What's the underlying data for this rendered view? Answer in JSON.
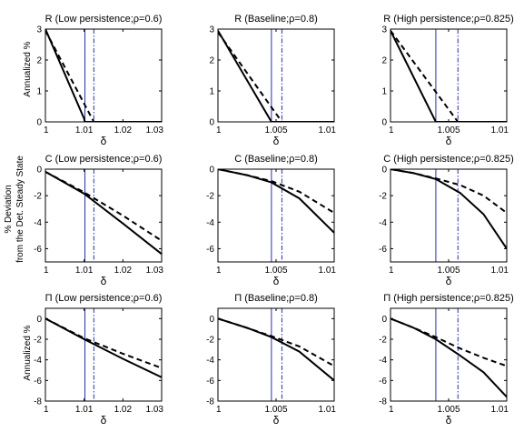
{
  "row_labels": [
    "Annualized %",
    "% Deviation",
    "from the Det. Steady State",
    "Annualized %"
  ],
  "chart_data": [
    {
      "type": "line",
      "title": "R (Low persistence;ρ=0.6)",
      "xlabel": "δ",
      "ylabel": "Annualized %",
      "xlim": [
        1,
        1.03
      ],
      "ylim": [
        0,
        3
      ],
      "xticks": [
        1,
        1.01,
        1.02,
        1.03
      ],
      "xtick_labels": [
        "1",
        "1.01",
        "1.02",
        "1.03"
      ],
      "yticks": [
        0,
        1,
        2,
        3
      ],
      "ytick_labels": [
        "0",
        "1",
        "2",
        "3"
      ],
      "vlines": [
        1.0102,
        1.0125
      ],
      "series": [
        {
          "style": "solid",
          "x": [
            1,
            1.01,
            1.0102,
            1.03
          ],
          "y": [
            3,
            0.1,
            0,
            0
          ]
        },
        {
          "style": "dashed",
          "x": [
            1,
            1.0125,
            1.03
          ],
          "y": [
            2.95,
            0,
            0
          ]
        }
      ]
    },
    {
      "type": "line",
      "title": "R (Baseline;ρ=0.8)",
      "xlabel": "δ",
      "ylabel": "",
      "xlim": [
        1,
        1.01
      ],
      "ylim": [
        0,
        3
      ],
      "xticks": [
        1,
        1.005,
        1.01
      ],
      "xtick_labels": [
        "1",
        "1.005",
        "1.01"
      ],
      "yticks": [
        0,
        1,
        2,
        3
      ],
      "ytick_labels": [
        "0",
        "1",
        "2",
        "3"
      ],
      "vlines": [
        1.0046,
        1.0055
      ],
      "series": [
        {
          "style": "solid",
          "x": [
            1,
            1.0046,
            1.01
          ],
          "y": [
            2.95,
            0,
            0
          ]
        },
        {
          "style": "dashed",
          "x": [
            1,
            1.0055,
            1.01
          ],
          "y": [
            2.9,
            0,
            0
          ]
        }
      ]
    },
    {
      "type": "line",
      "title": "R (High persistence;ρ=0.825)",
      "xlabel": "δ",
      "ylabel": "",
      "xlim": [
        1,
        1.01
      ],
      "ylim": [
        0,
        3
      ],
      "xticks": [
        1,
        1.005,
        1.01
      ],
      "xtick_labels": [
        "1",
        "1.005",
        "1.01"
      ],
      "yticks": [
        0,
        1,
        2,
        3
      ],
      "ytick_labels": [
        "0",
        "1",
        "2",
        "3"
      ],
      "vlines": [
        1.0039,
        1.0058
      ],
      "series": [
        {
          "style": "solid",
          "x": [
            1,
            1.0039,
            1.01
          ],
          "y": [
            2.95,
            0,
            0
          ]
        },
        {
          "style": "dashed",
          "x": [
            1,
            1.0058,
            1.01
          ],
          "y": [
            2.95,
            0,
            0
          ]
        }
      ]
    },
    {
      "type": "line",
      "title": "C (Low persistence;ρ=0.6)",
      "xlabel": "δ",
      "ylabel": "% Deviation from the Det. Steady State",
      "xlim": [
        1,
        1.03
      ],
      "ylim": [
        -7,
        0
      ],
      "xticks": [
        1,
        1.01,
        1.02,
        1.03
      ],
      "xtick_labels": [
        "1",
        "1.01",
        "1.02",
        "1.03"
      ],
      "yticks": [
        -6,
        -4,
        -2,
        0
      ],
      "ytick_labels": [
        "-6",
        "-4",
        "-2",
        "0"
      ],
      "vlines": [
        1.0102,
        1.0125
      ],
      "series": [
        {
          "style": "solid",
          "x": [
            1,
            1.01,
            1.02,
            1.03
          ],
          "y": [
            -0.2,
            -1.85,
            -4.1,
            -6.4
          ]
        },
        {
          "style": "dashed",
          "x": [
            1,
            1.01,
            1.02,
            1.03
          ],
          "y": [
            -0.2,
            -1.75,
            -3.5,
            -5.4
          ]
        }
      ]
    },
    {
      "type": "line",
      "title": "C (Baseline;ρ=0.8)",
      "xlabel": "δ",
      "ylabel": "",
      "xlim": [
        1,
        1.01
      ],
      "ylim": [
        -7,
        0
      ],
      "xticks": [
        1,
        1.005,
        1.01
      ],
      "xtick_labels": [
        "1",
        "1.005",
        "1.01"
      ],
      "yticks": [
        -6,
        -4,
        -2,
        0
      ],
      "ytick_labels": [
        "-6",
        "-4",
        "-2",
        "0"
      ],
      "vlines": [
        1.0046,
        1.0055
      ],
      "series": [
        {
          "style": "solid",
          "x": [
            1,
            1.0025,
            1.0046,
            1.007,
            1.01
          ],
          "y": [
            0,
            -0.45,
            -1.0,
            -2.2,
            -4.8
          ]
        },
        {
          "style": "dashed",
          "x": [
            1,
            1.0025,
            1.0046,
            1.007,
            1.01
          ],
          "y": [
            0,
            -0.45,
            -0.9,
            -1.7,
            -3.3
          ]
        }
      ]
    },
    {
      "type": "line",
      "title": "C (High persistence;ρ=0.825)",
      "xlabel": "δ",
      "ylabel": "",
      "xlim": [
        1,
        1.01
      ],
      "ylim": [
        -7,
        0
      ],
      "xticks": [
        1,
        1.005,
        1.01
      ],
      "xtick_labels": [
        "1",
        "1.005",
        "1.01"
      ],
      "yticks": [
        -6,
        -4,
        -2,
        0
      ],
      "ytick_labels": [
        "-6",
        "-4",
        "-2",
        "0"
      ],
      "vlines": [
        1.0039,
        1.0058
      ],
      "series": [
        {
          "style": "solid",
          "x": [
            1,
            1.002,
            1.0039,
            1.006,
            1.008,
            1.01
          ],
          "y": [
            0,
            -0.3,
            -0.75,
            -1.8,
            -3.4,
            -6.0
          ]
        },
        {
          "style": "dashed",
          "x": [
            1,
            1.002,
            1.0039,
            1.006,
            1.008,
            1.01
          ],
          "y": [
            0,
            -0.3,
            -0.7,
            -1.2,
            -2.0,
            -3.3
          ]
        }
      ]
    },
    {
      "type": "line",
      "title": "Π (Low persistence;ρ=0.6)",
      "xlabel": "δ",
      "ylabel": "Annualized %",
      "xlim": [
        1,
        1.03
      ],
      "ylim": [
        -8,
        1
      ],
      "xticks": [
        1,
        1.01,
        1.02,
        1.03
      ],
      "xtick_labels": [
        "1",
        "1.01",
        "1.02",
        "1.03"
      ],
      "yticks": [
        -8,
        -6,
        -4,
        -2,
        0
      ],
      "ytick_labels": [
        "-8",
        "-6",
        "-4",
        "-2",
        "0"
      ],
      "vlines": [
        1.0102,
        1.0125
      ],
      "series": [
        {
          "style": "solid",
          "x": [
            1,
            1.01,
            1.02,
            1.03
          ],
          "y": [
            0,
            -2.0,
            -3.9,
            -5.7
          ]
        },
        {
          "style": "dashed",
          "x": [
            1,
            1.01,
            1.02,
            1.03
          ],
          "y": [
            0,
            -1.9,
            -3.4,
            -4.8
          ]
        }
      ]
    },
    {
      "type": "line",
      "title": "Π (Baseline;ρ=0.8)",
      "xlabel": "δ",
      "ylabel": "",
      "xlim": [
        1,
        1.01
      ],
      "ylim": [
        -8,
        1
      ],
      "xticks": [
        1,
        1.005,
        1.01
      ],
      "xtick_labels": [
        "1",
        "1.005",
        "1.01"
      ],
      "yticks": [
        -8,
        -6,
        -4,
        -2,
        0
      ],
      "ytick_labels": [
        "-8",
        "-6",
        "-4",
        "-2",
        "0"
      ],
      "vlines": [
        1.0046,
        1.0055
      ],
      "series": [
        {
          "style": "solid",
          "x": [
            1,
            1.0025,
            1.0046,
            1.007,
            1.01
          ],
          "y": [
            0,
            -0.9,
            -1.8,
            -3.2,
            -6.0
          ]
        },
        {
          "style": "dashed",
          "x": [
            1,
            1.0025,
            1.0046,
            1.007,
            1.01
          ],
          "y": [
            0,
            -0.9,
            -1.7,
            -2.7,
            -4.6
          ]
        }
      ]
    },
    {
      "type": "line",
      "title": "Π (High persistence;ρ=0.825)",
      "xlabel": "δ",
      "ylabel": "",
      "xlim": [
        1,
        1.01
      ],
      "ylim": [
        -8,
        1
      ],
      "xticks": [
        1,
        1.005,
        1.01
      ],
      "xtick_labels": [
        "1",
        "1.005",
        "1.01"
      ],
      "yticks": [
        -8,
        -6,
        -4,
        -2,
        0
      ],
      "ytick_labels": [
        "-8",
        "-6",
        "-4",
        "-2",
        "0"
      ],
      "vlines": [
        1.0039,
        1.0058
      ],
      "series": [
        {
          "style": "solid",
          "x": [
            1,
            1.002,
            1.0039,
            1.006,
            1.008,
            1.01
          ],
          "y": [
            0,
            -0.9,
            -2.0,
            -3.6,
            -5.2,
            -7.6
          ]
        },
        {
          "style": "dashed",
          "x": [
            1,
            1.002,
            1.0039,
            1.006,
            1.008,
            1.01
          ],
          "y": [
            0,
            -0.9,
            -1.8,
            -2.9,
            -3.8,
            -4.6
          ]
        }
      ]
    }
  ],
  "colors": {
    "line": "#000000",
    "vline": "#1f2fbf",
    "frame": "#000000"
  }
}
